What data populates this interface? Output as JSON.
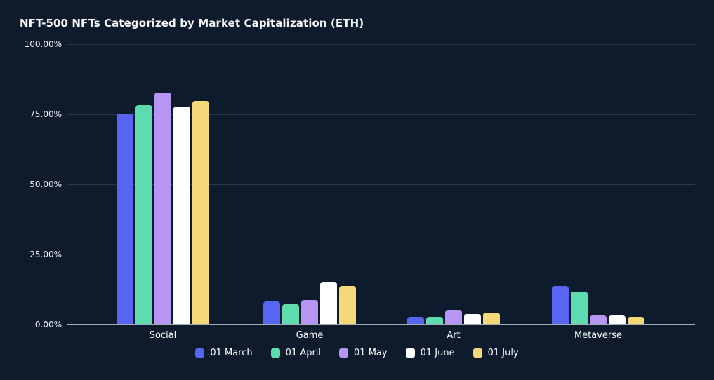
{
  "chart_data": {
    "type": "bar",
    "title": "NFT-500 NFTs Categorized by Market Capitalization (ETH)",
    "categories": [
      "Social",
      "Game",
      "Art",
      "Metaverse"
    ],
    "series": [
      {
        "name": "01 March",
        "color": "#5865f2",
        "values": [
          75,
          8,
          2.5,
          13.5
        ]
      },
      {
        "name": "01 April",
        "color": "#5fdbb0",
        "values": [
          78,
          7,
          2.5,
          11.5
        ]
      },
      {
        "name": "01 May",
        "color": "#b795f2",
        "values": [
          82.5,
          8.5,
          5,
          3
        ]
      },
      {
        "name": "01 June",
        "color": "#ffffff",
        "values": [
          77.5,
          15,
          3.5,
          3
        ]
      },
      {
        "name": "01 July",
        "color": "#f5d878",
        "values": [
          79.5,
          13.5,
          4,
          2.5
        ]
      }
    ],
    "ylabel": "",
    "ylim": [
      0,
      100
    ],
    "yticks": [
      "100.00%",
      "75.00%",
      "50.00%",
      "25.00%",
      "0.00%"
    ],
    "ytick_values": [
      100,
      75,
      50,
      25,
      0
    ],
    "grid": true,
    "legend_position": "bottom",
    "colors": {
      "background": "#0d1b2c",
      "gridline": "rgba(255,255,255,0.13)",
      "axis_line": "#a6aebb",
      "text": "#ffffff"
    }
  }
}
